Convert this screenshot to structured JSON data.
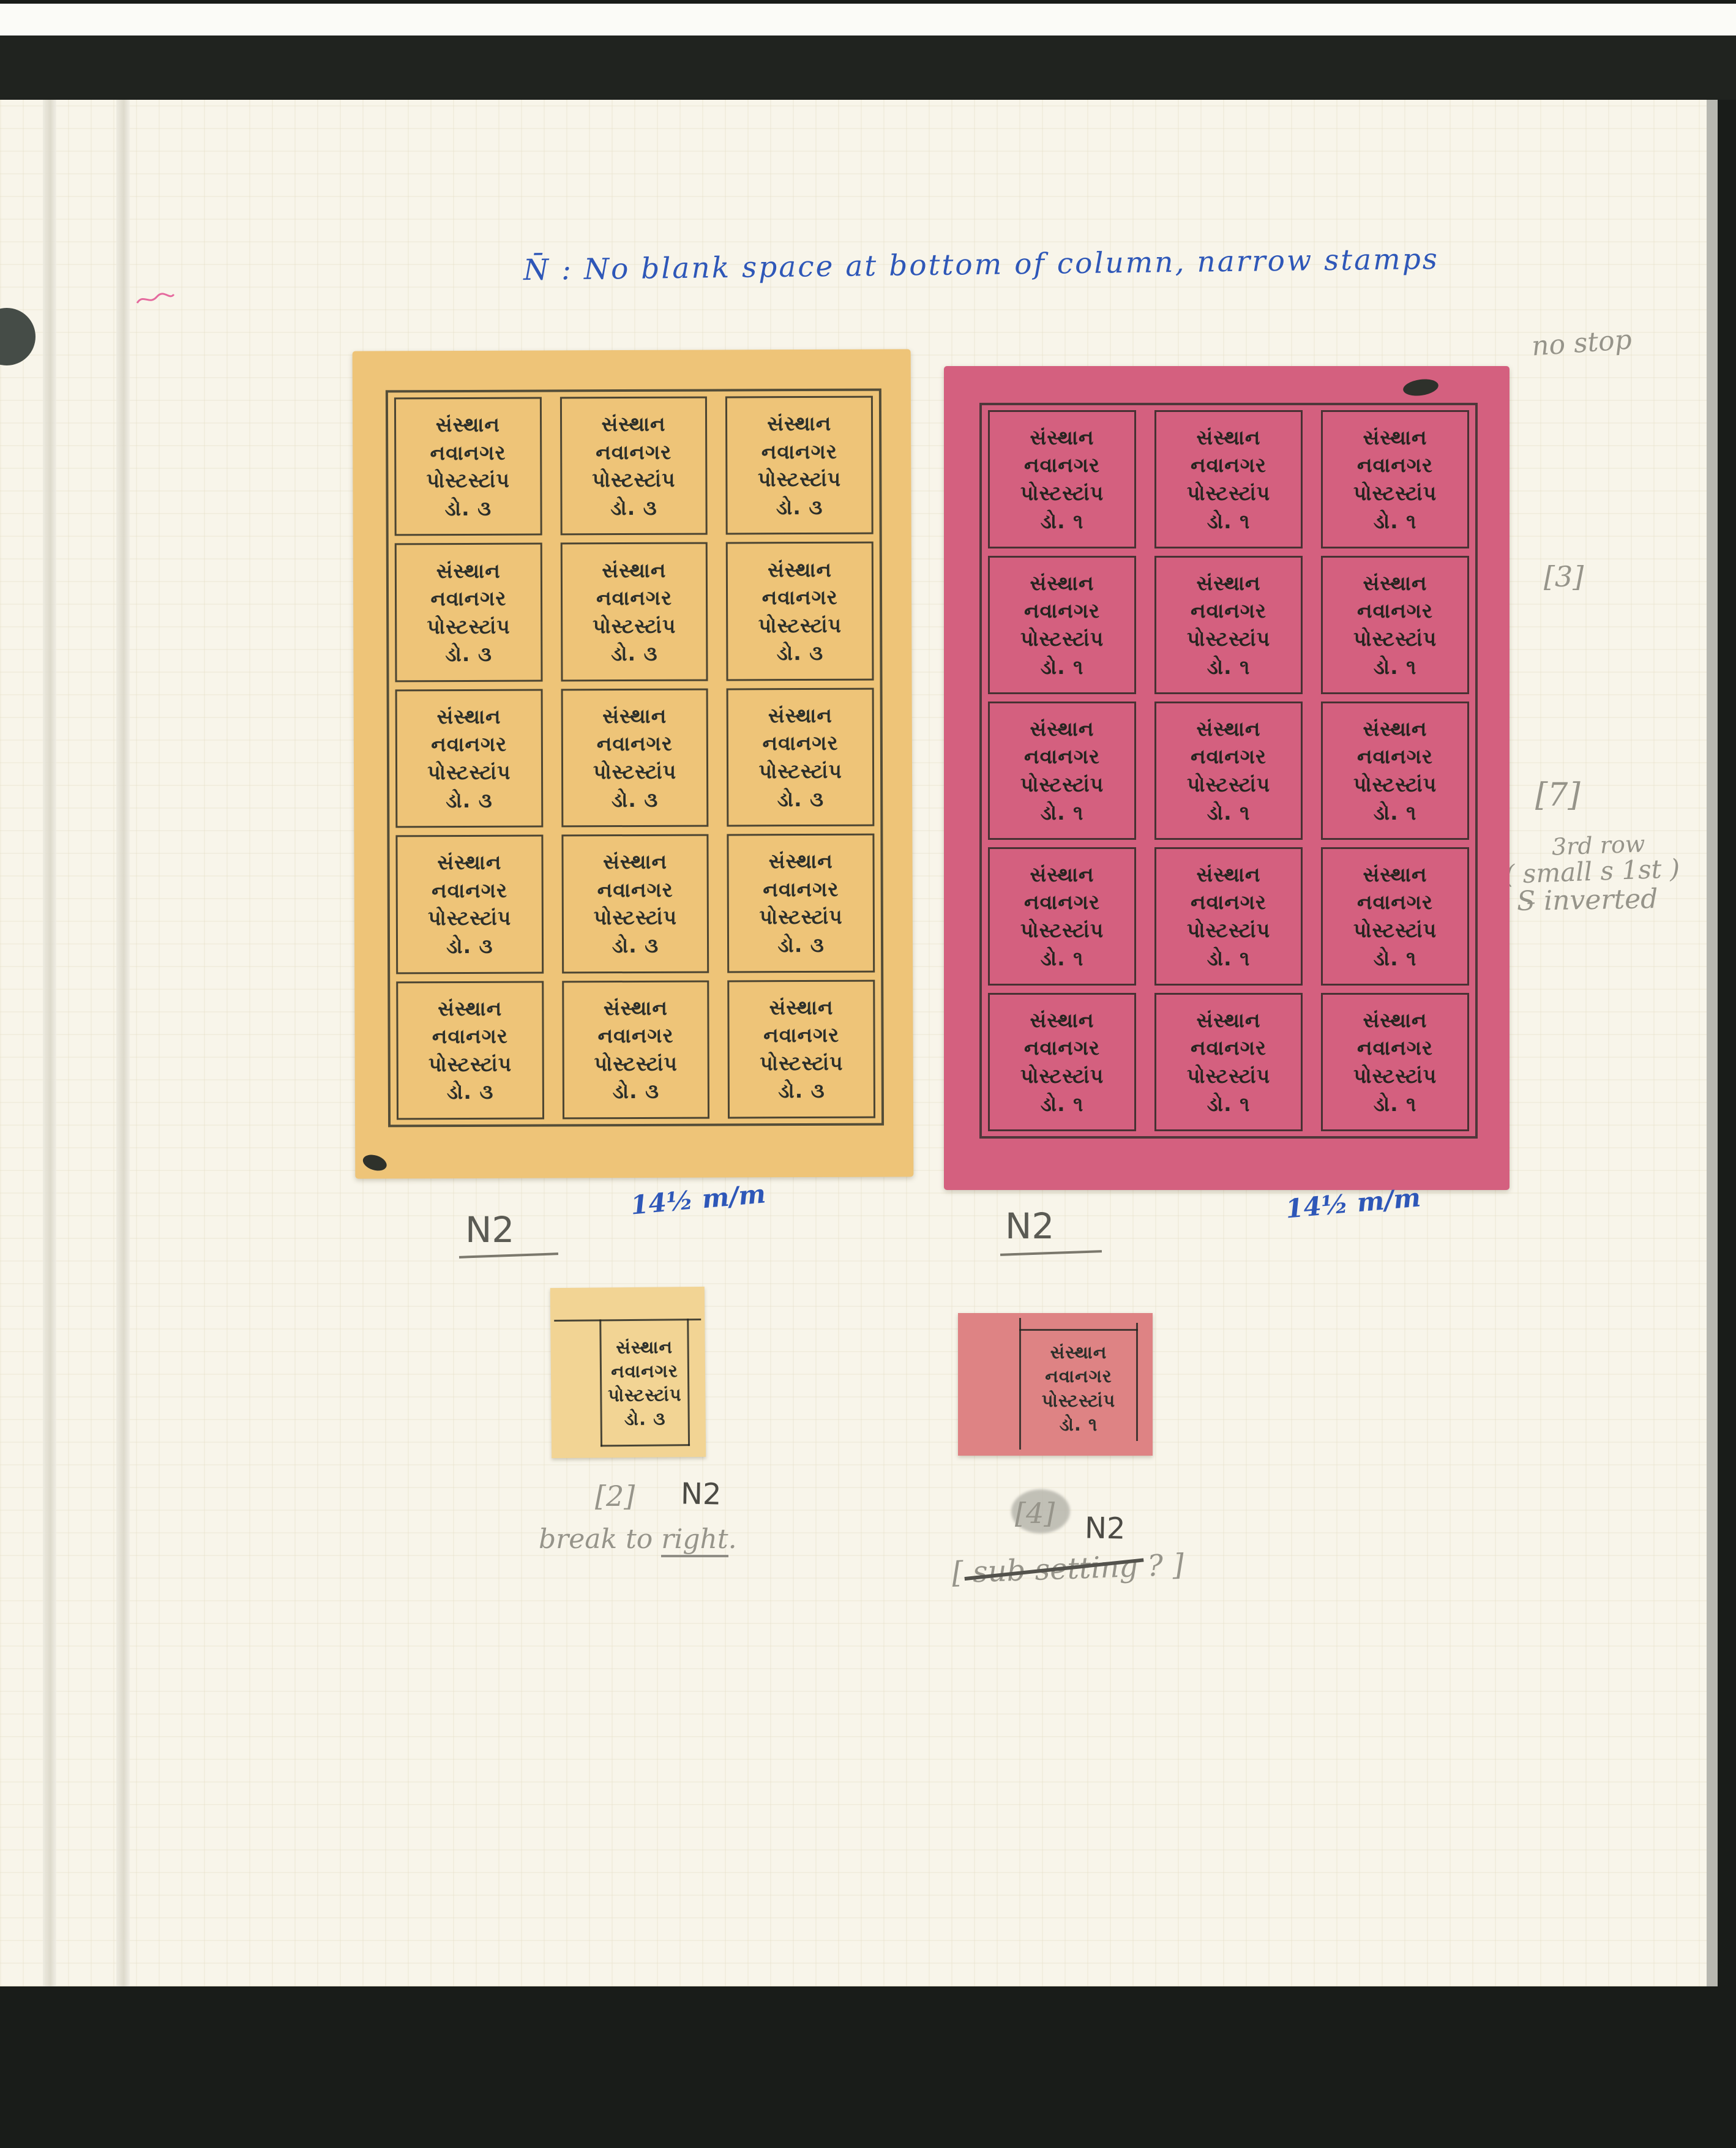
{
  "heading": {
    "text": "N̄ :  No blank space at bottom of column, narrow stamps"
  },
  "pencil_notes": {
    "no_stop": "no stop",
    "bracket_3": "[3]",
    "bracket_7": "[7]",
    "row_note_1": "3rd row",
    "row_note_2": "( small s  1st )",
    "row_note_3": "S̵ inverted",
    "single_yellow_number": "[2]",
    "single_yellow_type": "N2",
    "single_yellow_note_prefix": "break to ",
    "single_yellow_note_underlined": "right",
    "single_yellow_note_suffix": ".",
    "single_magenta_number": "[4]",
    "single_magenta_type": "N2",
    "single_magenta_note_open": "[ ",
    "single_magenta_note_struck": "sub setting",
    "single_magenta_note_close": " ? ]"
  },
  "ink_notes": {
    "sheet_yellow_label": "N2",
    "sheet_yellow_perf": "14½ m/m",
    "sheet_magenta_label": "N2",
    "sheet_magenta_perf": "14½ m/m"
  },
  "sheets": {
    "yellow": {
      "rows": 5,
      "cols": 3,
      "paper_color": "#eec478",
      "ink_color": "#2c2f2a",
      "lines": [
        "સંસ્થાન",
        "નવાનગર",
        "પોસ્ટસ્ટાંપ",
        "ડો.  ૩"
      ]
    },
    "magenta": {
      "rows": 5,
      "cols": 3,
      "paper_color": "#d4607f",
      "ink_color": "#262420",
      "lines": [
        "સંસ્થાન",
        "નવાનગર",
        "પોસ્ટસ્ટાંપ",
        "ડો.  ૧"
      ]
    }
  },
  "singles": {
    "yellow": {
      "paper_color": "#f2d494",
      "lines": [
        "સંસ્થાન",
        "નવાનગર",
        "પોસ્ટસ્ટાંપ",
        "ડો.  ૩"
      ]
    },
    "magenta": {
      "paper_color": "#de8384",
      "lines": [
        "સંસ્થાન",
        "નવાનગર",
        "પોસ્ટસ્ટાંપ",
        "ડો.  ૧"
      ]
    }
  },
  "colors": {
    "page_cream": "#f8f5ea",
    "blue_ink": "#2e57b8",
    "pencil_gray": "#96948a",
    "scan_black": "#20231f"
  }
}
